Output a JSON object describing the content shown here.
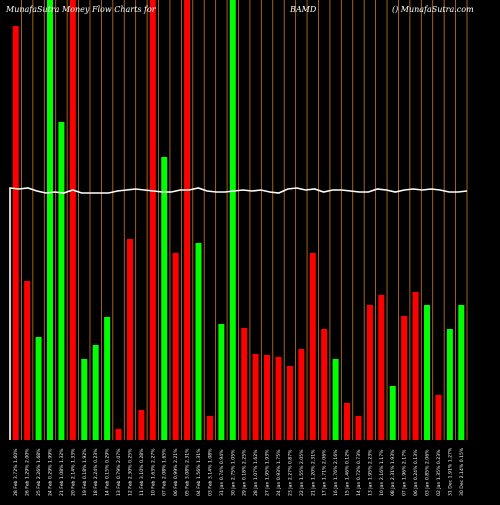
{
  "header": {
    "left": "MunafaSutra Money Flow Charts for",
    "symbol": "BAMD",
    "right": "() MunafaSutra.com"
  },
  "colors": {
    "background": "#000000",
    "up": "#00ff00",
    "down": "#ff0000",
    "divider": "#cc7722",
    "line": "#ffffff"
  },
  "chart_data": {
    "type": "bar",
    "ylim": [
      0,
      440
    ],
    "grid": false,
    "bars": [
      {
        "label": "28 Feb 3.72% 1.60%",
        "value": 414,
        "dir": "down"
      },
      {
        "label": "26 Feb 1.29% 2.00%",
        "value": 159,
        "dir": "down"
      },
      {
        "label": "25 Feb 2.26% 1.68%",
        "value": 103,
        "dir": "up"
      },
      {
        "label": "24 Feb 0.29% 1.99%",
        "value": 440,
        "dir": "up"
      },
      {
        "label": "21 Feb 1.08% 1.32%",
        "value": 318,
        "dir": "up"
      },
      {
        "label": "20 Feb 2.14% 1.33%",
        "value": 440,
        "dir": "down"
      },
      {
        "label": "19 Feb 0.18% 1.92%",
        "value": 81,
        "dir": "up"
      },
      {
        "label": "18 Feb 2.24% 0.23%",
        "value": 95,
        "dir": "up"
      },
      {
        "label": "14 Feb 0.15% 0.29%",
        "value": 123,
        "dir": "up"
      },
      {
        "label": "13 Feb 0.79% 2.07%",
        "value": 11,
        "dir": "down"
      },
      {
        "label": "12 Feb 2.30% 0.25%",
        "value": 201,
        "dir": "down"
      },
      {
        "label": "11 Feb 3.10% 0.28%",
        "value": 30,
        "dir": "down"
      },
      {
        "label": "10 Feb 1.63% 2.27%",
        "value": 440,
        "dir": "down"
      },
      {
        "label": "07 Feb 2.08% 1.65%",
        "value": 283,
        "dir": "up"
      },
      {
        "label": "06 Feb 0.99% 2.21%",
        "value": 187,
        "dir": "down"
      },
      {
        "label": "05 Feb 3.08% 2.31%",
        "value": 440,
        "dir": "down"
      },
      {
        "label": "04 Feb 1.56% 1.31%",
        "value": 197,
        "dir": "up"
      },
      {
        "label": "03 Feb 3.14% 1.08%",
        "value": 24,
        "dir": "down"
      },
      {
        "label": "31 Jan 0.74% 0.94%",
        "value": 116,
        "dir": "up"
      },
      {
        "label": "30 Jan 2.75% 1.05%",
        "value": 440,
        "dir": "up"
      },
      {
        "label": "29 Jan 0.18% 2.25%",
        "value": 112,
        "dir": "down"
      },
      {
        "label": "28 Jan 1.07% 1.62%",
        "value": 86,
        "dir": "down"
      },
      {
        "label": "27 Jan 1.95% 1.93%",
        "value": 85,
        "dir": "down"
      },
      {
        "label": "24 Jan 0.93% 1.75%",
        "value": 83,
        "dir": "down"
      },
      {
        "label": "23 Jan 2.27% 0.87%",
        "value": 74,
        "dir": "down"
      },
      {
        "label": "22 Jan 1.55% 2.05%",
        "value": 91,
        "dir": "down"
      },
      {
        "label": "21 Jan 1.20% 2.31%",
        "value": 187,
        "dir": "down"
      },
      {
        "label": "17 Jan 1.71% 2.06%",
        "value": 111,
        "dir": "down"
      },
      {
        "label": "16 Jan 1.76% 2.16%",
        "value": 81,
        "dir": "up"
      },
      {
        "label": "15 Jan 1.46% 0.12%",
        "value": 37,
        "dir": "down"
      },
      {
        "label": "14 Jan 0.72% 0.73%",
        "value": 24,
        "dir": "down"
      },
      {
        "label": "13 Jan 1.95% 2.23%",
        "value": 135,
        "dir": "down"
      },
      {
        "label": "10 Jan 2.16% 1.17%",
        "value": 145,
        "dir": "down"
      },
      {
        "label": "08 Jan 2.31% 1.93%",
        "value": 54,
        "dir": "up"
      },
      {
        "label": "07 Jan 1.96% 2.17%",
        "value": 124,
        "dir": "down"
      },
      {
        "label": "06 Jan 0.24% 0.13%",
        "value": 148,
        "dir": "down"
      },
      {
        "label": "03 Jan 0.85% 2.06%",
        "value": 135,
        "dir": "up"
      },
      {
        "label": "02 Jan 1.35% 0.23%",
        "value": 45,
        "dir": "down"
      },
      {
        "label": "31 Dec 1.91% 1.27%",
        "value": 111,
        "dir": "up"
      },
      {
        "label": "30 Dec 2.14% 0.15%",
        "value": 135,
        "dir": "up"
      }
    ],
    "line": [
      252,
      251,
      252,
      249,
      247,
      248,
      247,
      250,
      247,
      247,
      247,
      247,
      249,
      250,
      251,
      250,
      249,
      248,
      248,
      250,
      250,
      252,
      249,
      248,
      248,
      249,
      250,
      249,
      250,
      248,
      247,
      251,
      252,
      250,
      251,
      248,
      250,
      250,
      249,
      248,
      248,
      251,
      250,
      248,
      250,
      251,
      250,
      251,
      250,
      248,
      248,
      249
    ],
    "line_ylim": [
      0,
      440
    ]
  }
}
